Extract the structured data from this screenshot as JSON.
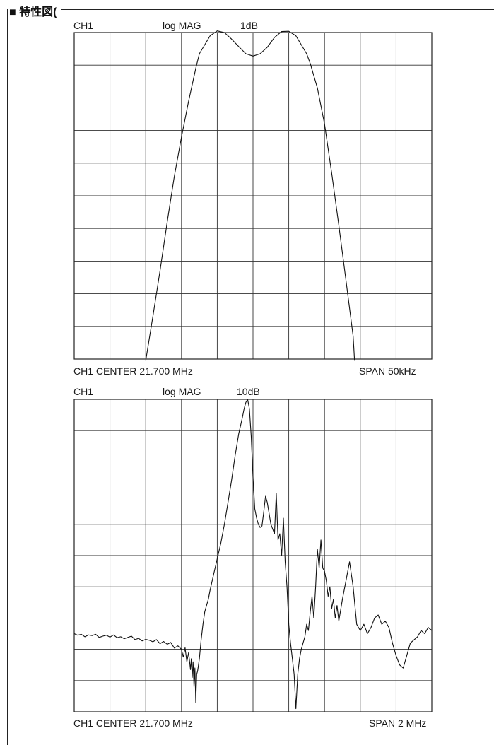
{
  "page": {
    "heading": "■ 特性図("
  },
  "chart_data": [
    {
      "type": "line",
      "channel": "CH1",
      "format": "log MAG",
      "scale": "1dB",
      "footer_left": "CH1 CENTER 21.700 MHz",
      "footer_right": "SPAN 50kHz",
      "center_mhz": 21.7,
      "span_khz": 50,
      "xlim": [
        -25,
        25
      ],
      "ylim": [
        -10,
        0
      ],
      "x_divisions": 10,
      "y_divisions": 10,
      "grid": true,
      "series": [
        {
          "x": [
            -15,
            -14,
            -13,
            -12,
            -11,
            -10,
            -9,
            -8,
            -7.5,
            -6,
            -5,
            -4,
            -3,
            -2,
            -1,
            0,
            1,
            2,
            3,
            4,
            5,
            6,
            7.5,
            8,
            9,
            10,
            11,
            12,
            13,
            14,
            14.2
          ],
          "y": [
            -10.05,
            -8.7,
            -7.3,
            -5.8,
            -4.4,
            -3.2,
            -2.1,
            -1.1,
            -0.65,
            -0.1,
            0.05,
            0.0,
            -0.2,
            -0.43,
            -0.65,
            -0.72,
            -0.65,
            -0.45,
            -0.15,
            0.03,
            0.04,
            -0.1,
            -0.65,
            -0.95,
            -1.7,
            -2.8,
            -4.3,
            -5.9,
            -7.6,
            -9.3,
            -10.05
          ]
        }
      ]
    },
    {
      "type": "line",
      "channel": "CH1",
      "format": "log MAG",
      "scale": "10dB",
      "footer_left": "CH1 CENTER 21.700 MHz",
      "footer_right": "SPAN 2 MHz",
      "center_mhz": 21.7,
      "span_mhz": 2,
      "xlim": [
        -1,
        1
      ],
      "ylim": [
        -100,
        0
      ],
      "x_divisions": 10,
      "y_divisions": 10,
      "grid": true,
      "series": [
        {
          "x": [
            -1.0,
            -0.98,
            -0.96,
            -0.94,
            -0.92,
            -0.9,
            -0.88,
            -0.86,
            -0.84,
            -0.82,
            -0.8,
            -0.78,
            -0.76,
            -0.74,
            -0.72,
            -0.7,
            -0.68,
            -0.66,
            -0.64,
            -0.62,
            -0.6,
            -0.58,
            -0.56,
            -0.54,
            -0.52,
            -0.5,
            -0.48,
            -0.46,
            -0.44,
            -0.42,
            -0.4,
            -0.39,
            -0.38,
            -0.37,
            -0.36,
            -0.35,
            -0.345,
            -0.34,
            -0.335,
            -0.33,
            -0.325,
            -0.32,
            -0.315,
            -0.31,
            -0.3,
            -0.29,
            -0.28,
            -0.27,
            -0.26,
            -0.25,
            -0.24,
            -0.22,
            -0.2,
            -0.18,
            -0.16,
            -0.14,
            -0.12,
            -0.1,
            -0.08,
            -0.06,
            -0.05,
            -0.04,
            -0.03,
            -0.02,
            -0.01,
            0.0,
            0.005,
            0.01,
            0.02,
            0.03,
            0.04,
            0.05,
            0.06,
            0.07,
            0.08,
            0.1,
            0.12,
            0.13,
            0.14,
            0.15,
            0.16,
            0.17,
            0.18,
            0.19,
            0.2,
            0.21,
            0.22,
            0.23,
            0.24,
            0.25,
            0.26,
            0.27,
            0.28,
            0.29,
            0.3,
            0.31,
            0.32,
            0.33,
            0.34,
            0.35,
            0.36,
            0.37,
            0.38,
            0.39,
            0.4,
            0.41,
            0.42,
            0.43,
            0.44,
            0.45,
            0.46,
            0.47,
            0.48,
            0.5,
            0.52,
            0.54,
            0.56,
            0.58,
            0.6,
            0.62,
            0.64,
            0.66,
            0.68,
            0.7,
            0.72,
            0.74,
            0.76,
            0.78,
            0.8,
            0.82,
            0.84,
            0.86,
            0.88,
            0.9,
            0.92,
            0.94,
            0.96,
            0.98,
            1.0
          ],
          "y": [
            -75.0,
            -75.5,
            -75.2,
            -76.0,
            -75.4,
            -75.6,
            -75.2,
            -76.2,
            -75.8,
            -75.5,
            -76.1,
            -75.4,
            -76.3,
            -76.0,
            -76.6,
            -76.2,
            -75.8,
            -76.9,
            -76.5,
            -77.3,
            -76.8,
            -77.1,
            -77.6,
            -76.9,
            -78.2,
            -77.5,
            -78.4,
            -77.8,
            -79.6,
            -78.9,
            -80.0,
            -82.5,
            -79.5,
            -84.0,
            -81.0,
            -86.5,
            -83.0,
            -89.0,
            -84.0,
            -92.0,
            -86.0,
            -97.0,
            -88.0,
            -87.0,
            -83.0,
            -77.0,
            -72.0,
            -68.0,
            -66.0,
            -64.0,
            -61.0,
            -56.0,
            -51.0,
            -46.0,
            -40.0,
            -33.0,
            -26.0,
            -18.0,
            -11.0,
            -6.0,
            -3.0,
            -1.0,
            0.0,
            -3.0,
            -12.0,
            -25.0,
            -30.0,
            -35.0,
            -38.0,
            -40.0,
            -41.0,
            -40.5,
            -36.0,
            -31.0,
            -33.0,
            -40.0,
            -43.0,
            -30.0,
            -45.0,
            -43.0,
            -50.0,
            -38.0,
            -52.0,
            -60.0,
            -72.0,
            -78.0,
            -83.0,
            -88.0,
            -99.0,
            -88.0,
            -83.0,
            -80.0,
            -78.0,
            -76.0,
            -72.0,
            -74.0,
            -68.0,
            -63.0,
            -70.0,
            -60.0,
            -48.0,
            -54.0,
            -45.0,
            -54.0,
            -55.0,
            -58.0,
            -63.0,
            -60.0,
            -67.0,
            -64.0,
            -70.0,
            -66.0,
            -71.0,
            -64.0,
            -58.0,
            -52.0,
            -60.0,
            -72.0,
            -74.0,
            -72.0,
            -75.0,
            -73.0,
            -70.0,
            -69.0,
            -72.0,
            -71.0,
            -73.0,
            -78.0,
            -82.0,
            -85.0,
            -86.0,
            -82.0,
            -78.0,
            -77.0,
            -76.0,
            -74.0,
            -75.0,
            -73.0,
            -74.0
          ]
        }
      ]
    }
  ]
}
